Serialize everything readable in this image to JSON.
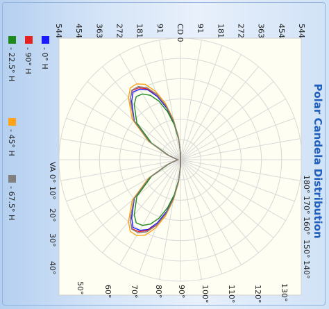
{
  "chart_data": {
    "type": "polar",
    "title": "Polar Candela Distribution",
    "radial_label": "CD",
    "radial_ticks": [
      "0",
      "91",
      "181",
      "272",
      "363",
      "454",
      "544"
    ],
    "left_angle_label": "VA 0°",
    "left_angle_ticks": [
      "VA 0°",
      "10°",
      "20°",
      "30°",
      "40°",
      "50°",
      "60°",
      "70°",
      "80°",
      "90°"
    ],
    "right_angle_ticks": [
      "180°",
      "170°",
      "160°",
      "150°",
      "140°",
      "130°",
      "120°",
      "110°",
      "100°"
    ],
    "series": [
      {
        "name": "- 0° H",
        "color": "#1a1aff",
        "points": [
          {
            "angle": 0,
            "cd": 12
          },
          {
            "angle": 10,
            "cd": 20
          },
          {
            "angle": 20,
            "cd": 60
          },
          {
            "angle": 30,
            "cd": 160
          },
          {
            "angle": 40,
            "cd": 270
          },
          {
            "angle": 50,
            "cd": 340
          },
          {
            "angle": 55,
            "cd": 370
          },
          {
            "angle": 60,
            "cd": 365
          },
          {
            "angle": 65,
            "cd": 345
          },
          {
            "angle": 70,
            "cd": 300
          },
          {
            "angle": 75,
            "cd": 240
          },
          {
            "angle": 80,
            "cd": 170
          },
          {
            "angle": 85,
            "cd": 95
          },
          {
            "angle": 90,
            "cd": 30
          }
        ]
      },
      {
        "name": "- 90° H",
        "color": "#e52222",
        "points": [
          {
            "angle": 0,
            "cd": 12
          },
          {
            "angle": 10,
            "cd": 20
          },
          {
            "angle": 20,
            "cd": 58
          },
          {
            "angle": 30,
            "cd": 158
          },
          {
            "angle": 40,
            "cd": 272
          },
          {
            "angle": 50,
            "cd": 350
          },
          {
            "angle": 55,
            "cd": 378
          },
          {
            "angle": 60,
            "cd": 372
          },
          {
            "angle": 65,
            "cd": 350
          },
          {
            "angle": 70,
            "cd": 310
          },
          {
            "angle": 75,
            "cd": 248
          },
          {
            "angle": 80,
            "cd": 175
          },
          {
            "angle": 85,
            "cd": 98
          },
          {
            "angle": 90,
            "cd": 32
          }
        ]
      },
      {
        "name": "- 22.5° H",
        "color": "#1e8a1e",
        "points": [
          {
            "angle": 0,
            "cd": 12
          },
          {
            "angle": 10,
            "cd": 20
          },
          {
            "angle": 20,
            "cd": 56
          },
          {
            "angle": 30,
            "cd": 150
          },
          {
            "angle": 40,
            "cd": 255
          },
          {
            "angle": 50,
            "cd": 322
          },
          {
            "angle": 55,
            "cd": 345
          },
          {
            "angle": 60,
            "cd": 340
          },
          {
            "angle": 65,
            "cd": 318
          },
          {
            "angle": 70,
            "cd": 278
          },
          {
            "angle": 75,
            "cd": 222
          },
          {
            "angle": 80,
            "cd": 158
          },
          {
            "angle": 85,
            "cd": 90
          },
          {
            "angle": 90,
            "cd": 28
          }
        ]
      },
      {
        "name": "- 45° H",
        "color": "#ffa31a",
        "points": [
          {
            "angle": 0,
            "cd": 12
          },
          {
            "angle": 10,
            "cd": 20
          },
          {
            "angle": 20,
            "cd": 62
          },
          {
            "angle": 30,
            "cd": 165
          },
          {
            "angle": 40,
            "cd": 282
          },
          {
            "angle": 50,
            "cd": 362
          },
          {
            "angle": 55,
            "cd": 392
          },
          {
            "angle": 60,
            "cd": 392
          },
          {
            "angle": 65,
            "cd": 372
          },
          {
            "angle": 70,
            "cd": 326
          },
          {
            "angle": 75,
            "cd": 262
          },
          {
            "angle": 80,
            "cd": 184
          },
          {
            "angle": 85,
            "cd": 104
          },
          {
            "angle": 90,
            "cd": 34
          }
        ]
      },
      {
        "name": "- 67.5° H",
        "color": "#808080",
        "points": [
          {
            "angle": 0,
            "cd": 12
          },
          {
            "angle": 10,
            "cd": 20
          },
          {
            "angle": 20,
            "cd": 60
          },
          {
            "angle": 30,
            "cd": 160
          },
          {
            "angle": 40,
            "cd": 272
          },
          {
            "angle": 50,
            "cd": 350
          },
          {
            "angle": 55,
            "cd": 380
          },
          {
            "angle": 60,
            "cd": 378
          },
          {
            "angle": 65,
            "cd": 356
          },
          {
            "angle": 70,
            "cd": 312
          },
          {
            "angle": 75,
            "cd": 250
          },
          {
            "angle": 80,
            "cd": 176
          },
          {
            "angle": 85,
            "cd": 99
          },
          {
            "angle": 90,
            "cd": 32
          }
        ]
      }
    ],
    "rmax": 544,
    "legend_position": "left",
    "grid": true,
    "colors": {
      "plot_bg": "#fffef2",
      "grid": "#d8d8d8",
      "title": "#1f5fbf"
    }
  }
}
